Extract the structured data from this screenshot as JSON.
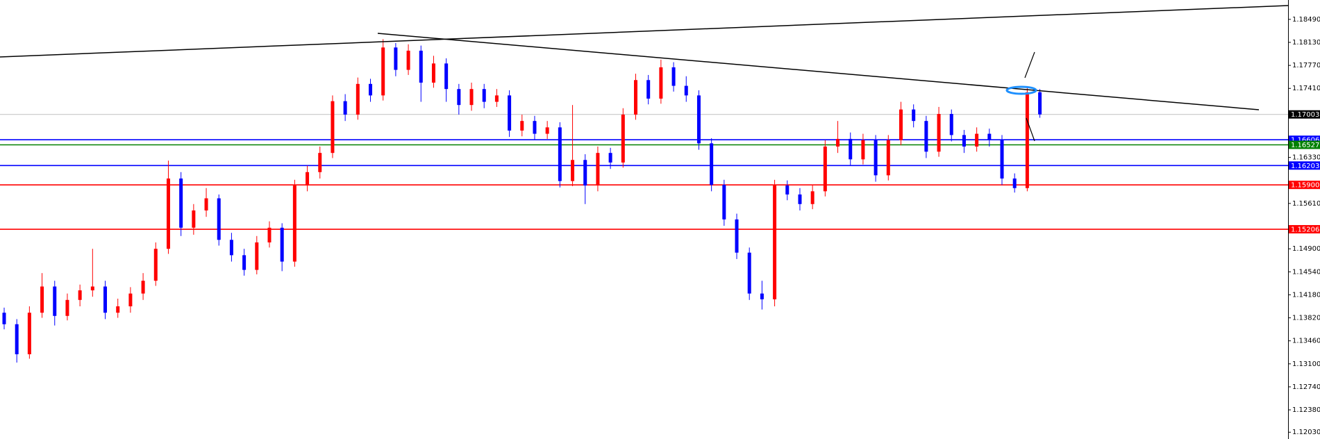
{
  "chart_data": {
    "type": "candlestick",
    "up_color": "#ff0000",
    "down_color": "#0000ff",
    "ylim": [
      1.11924,
      1.18793
    ],
    "yticks": [
      {
        "value": 1.1849,
        "label": "1.18490"
      },
      {
        "value": 1.1813,
        "label": "1.18130"
      },
      {
        "value": 1.1777,
        "label": "1.17770"
      },
      {
        "value": 1.1741,
        "label": "1.17410"
      },
      {
        "value": 1.1633,
        "label": "1.16330"
      },
      {
        "value": 1.1561,
        "label": "1.15610"
      },
      {
        "value": 1.149,
        "label": "1.14900"
      },
      {
        "value": 1.1454,
        "label": "1.14540"
      },
      {
        "value": 1.1418,
        "label": "1.14180"
      },
      {
        "value": 1.1382,
        "label": "1.13820"
      },
      {
        "value": 1.1346,
        "label": "1.13460"
      },
      {
        "value": 1.131,
        "label": "1.13100"
      },
      {
        "value": 1.1274,
        "label": "1.12740"
      },
      {
        "value": 1.1238,
        "label": "1.12380"
      },
      {
        "value": 1.1203,
        "label": "1.12030"
      }
    ],
    "levels": [
      {
        "value": 1.17003,
        "color": "#c0c0c0",
        "tag_color": "#000000"
      },
      {
        "value": 1.16606,
        "color": "#0000ff",
        "tag_color": "#0000ff"
      },
      {
        "value": 1.16527,
        "color": "#008000",
        "tag_color": "#008000"
      },
      {
        "value": 1.16203,
        "color": "#0000ff",
        "tag_color": "#0000ff"
      },
      {
        "value": 1.159,
        "label": "1.15900",
        "color": "#ff0000",
        "tag_color": "#ff0000"
      },
      {
        "value": 1.15206,
        "color": "#ff0000",
        "tag_color": "#ff0000"
      }
    ],
    "candles": [
      [
        1.139,
        1.1398,
        1.1364,
        1.1372
      ],
      [
        1.1372,
        1.138,
        1.1312,
        1.1325
      ],
      [
        1.1325,
        1.14,
        1.1318,
        1.139
      ],
      [
        1.139,
        1.1452,
        1.1382,
        1.1431
      ],
      [
        1.1431,
        1.144,
        1.137,
        1.1385
      ],
      [
        1.1385,
        1.142,
        1.1378,
        1.141
      ],
      [
        1.141,
        1.1434,
        1.14,
        1.1425
      ],
      [
        1.1425,
        1.149,
        1.1415,
        1.1431
      ],
      [
        1.1431,
        1.144,
        1.138,
        1.139
      ],
      [
        1.139,
        1.1412,
        1.1382,
        1.14
      ],
      [
        1.14,
        1.143,
        1.139,
        1.142
      ],
      [
        1.142,
        1.1452,
        1.141,
        1.144
      ],
      [
        1.144,
        1.15,
        1.1432,
        1.149
      ],
      [
        1.149,
        1.1628,
        1.1482,
        1.16
      ],
      [
        1.16,
        1.161,
        1.151,
        1.1523
      ],
      [
        1.1523,
        1.156,
        1.1512,
        1.155
      ],
      [
        1.155,
        1.1585,
        1.154,
        1.1569
      ],
      [
        1.1569,
        1.1575,
        1.1495,
        1.1504
      ],
      [
        1.1504,
        1.1515,
        1.147,
        1.148
      ],
      [
        1.148,
        1.149,
        1.1448,
        1.1457
      ],
      [
        1.1457,
        1.151,
        1.145,
        1.15
      ],
      [
        1.15,
        1.1533,
        1.1492,
        1.1523
      ],
      [
        1.1523,
        1.153,
        1.1455,
        1.147
      ],
      [
        1.147,
        1.1598,
        1.1462,
        1.1589
      ],
      [
        1.1589,
        1.162,
        1.158,
        1.161
      ],
      [
        1.161,
        1.165,
        1.16,
        1.164
      ],
      [
        1.164,
        1.173,
        1.1632,
        1.1721
      ],
      [
        1.1721,
        1.1732,
        1.169,
        1.17
      ],
      [
        1.17,
        1.1758,
        1.1692,
        1.1748
      ],
      [
        1.1748,
        1.1756,
        1.172,
        1.173
      ],
      [
        1.173,
        1.1818,
        1.1722,
        1.1805
      ],
      [
        1.1805,
        1.1812,
        1.176,
        1.177
      ],
      [
        1.177,
        1.181,
        1.1762,
        1.18
      ],
      [
        1.18,
        1.1808,
        1.172,
        1.175
      ],
      [
        1.175,
        1.1792,
        1.1742,
        1.178
      ],
      [
        1.178,
        1.1788,
        1.172,
        1.174
      ],
      [
        1.174,
        1.1748,
        1.17,
        1.1715
      ],
      [
        1.1715,
        1.175,
        1.1706,
        1.174
      ],
      [
        1.174,
        1.1748,
        1.171,
        1.172
      ],
      [
        1.172,
        1.174,
        1.1712,
        1.173
      ],
      [
        1.173,
        1.1738,
        1.1665,
        1.1675
      ],
      [
        1.1675,
        1.17,
        1.1666,
        1.169
      ],
      [
        1.169,
        1.1698,
        1.166,
        1.167
      ],
      [
        1.167,
        1.169,
        1.1662,
        1.168
      ],
      [
        1.168,
        1.1688,
        1.1586,
        1.1596
      ],
      [
        1.1596,
        1.1715,
        1.1588,
        1.1629
      ],
      [
        1.1629,
        1.1638,
        1.156,
        1.1589
      ],
      [
        1.1589,
        1.165,
        1.158,
        1.164
      ],
      [
        1.164,
        1.1648,
        1.1615,
        1.1625
      ],
      [
        1.1625,
        1.171,
        1.1617,
        1.17
      ],
      [
        1.17,
        1.1764,
        1.1692,
        1.1754
      ],
      [
        1.1754,
        1.1762,
        1.1716,
        1.1725
      ],
      [
        1.1725,
        1.1786,
        1.1717,
        1.1774
      ],
      [
        1.1774,
        1.1782,
        1.1736,
        1.1745
      ],
      [
        1.1745,
        1.176,
        1.172,
        1.173
      ],
      [
        1.173,
        1.1738,
        1.1645,
        1.1655
      ],
      [
        1.1655,
        1.1663,
        1.158,
        1.159
      ],
      [
        1.159,
        1.1598,
        1.1526,
        1.1536
      ],
      [
        1.1536,
        1.1545,
        1.1474,
        1.1484
      ],
      [
        1.1484,
        1.1492,
        1.141,
        1.142
      ],
      [
        1.142,
        1.144,
        1.1395,
        1.1411
      ],
      [
        1.1411,
        1.1598,
        1.14,
        1.1589
      ],
      [
        1.1589,
        1.1597,
        1.1566,
        1.1575
      ],
      [
        1.1575,
        1.1585,
        1.155,
        1.156
      ],
      [
        1.156,
        1.159,
        1.1552,
        1.158
      ],
      [
        1.158,
        1.166,
        1.1572,
        1.165
      ],
      [
        1.165,
        1.169,
        1.164,
        1.1662
      ],
      [
        1.1662,
        1.1672,
        1.162,
        1.163
      ],
      [
        1.163,
        1.167,
        1.1622,
        1.166
      ],
      [
        1.166,
        1.1668,
        1.1595,
        1.1605
      ],
      [
        1.1605,
        1.1668,
        1.1597,
        1.166
      ],
      [
        1.166,
        1.172,
        1.1652,
        1.1708
      ],
      [
        1.1708,
        1.1716,
        1.168,
        1.169
      ],
      [
        1.169,
        1.1698,
        1.1632,
        1.1642
      ],
      [
        1.1642,
        1.1712,
        1.1634,
        1.1701
      ],
      [
        1.1701,
        1.1708,
        1.1658,
        1.1668
      ],
      [
        1.1668,
        1.1676,
        1.164,
        1.165
      ],
      [
        1.165,
        1.168,
        1.1642,
        1.167
      ],
      [
        1.167,
        1.1678,
        1.165,
        1.166
      ],
      [
        1.166,
        1.1668,
        1.159,
        1.16
      ],
      [
        1.16,
        1.1608,
        1.1578,
        1.1585
      ],
      [
        1.1585,
        1.1742,
        1.158,
        1.1735
      ],
      [
        1.1735,
        1.174,
        1.1695,
        1.17003
      ]
    ]
  }
}
